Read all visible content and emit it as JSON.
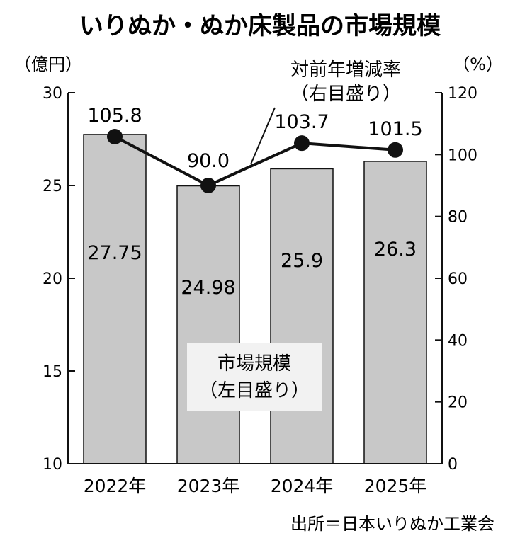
{
  "chart_data": {
    "type": "bar+line",
    "title": "いりぬか・ぬか床製品の市場規模",
    "categories": [
      "2022年",
      "2023年",
      "2024年",
      "2025年"
    ],
    "bar_series": {
      "name_line1": "市場規模",
      "name_line2": "（左目盛り）",
      "values": [
        27.75,
        24.98,
        25.9,
        26.3
      ],
      "labels": [
        "27.75",
        "24.98",
        "25.9",
        "26.3"
      ],
      "color": "#c8c8c8"
    },
    "line_series": {
      "name_line1": "対前年増減率",
      "name_line2": "（右目盛り）",
      "values": [
        105.8,
        90.0,
        103.7,
        101.5
      ],
      "labels": [
        "105.8",
        "90.0",
        "103.7",
        "101.5"
      ],
      "color": "#111111"
    },
    "left_axis": {
      "unit": "（億円）",
      "min": 10,
      "max": 30,
      "ticks": [
        "10",
        "15",
        "20",
        "25",
        "30"
      ]
    },
    "right_axis": {
      "unit": "（%）",
      "min": 0,
      "max": 120,
      "ticks": [
        "0",
        "20",
        "40",
        "60",
        "80",
        "100",
        "120"
      ]
    },
    "source": "出所＝日本いりぬか工業会"
  }
}
